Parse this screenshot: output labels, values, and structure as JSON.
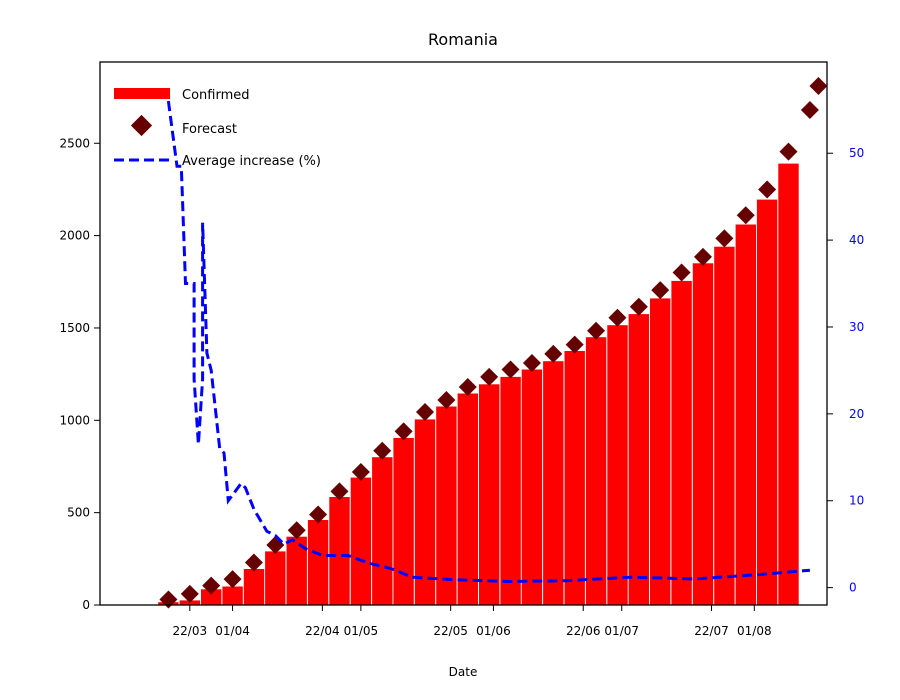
{
  "chart_data": {
    "type": "bar",
    "title": "Romania",
    "xlabel": "Date",
    "ylabel": "",
    "ylabel_right": "",
    "x_tick_labels": [
      "22/03",
      "01/04",
      "22/04",
      "01/05",
      "22/05",
      "01/06",
      "22/06",
      "01/07",
      "22/07",
      "01/08"
    ],
    "y_ticks": [
      "0",
      "500",
      "1000",
      "1500",
      "2000",
      "2500"
    ],
    "y2_ticks": [
      "0",
      "10",
      "20",
      "30",
      "40",
      "50"
    ],
    "ylim": [
      0,
      2940
    ],
    "y2lim": [
      -2,
      60.5
    ],
    "legend": {
      "placement": "upper-left",
      "entries": [
        "Confirmed",
        "Forecast",
        "Average increase (%)"
      ]
    },
    "colors": {
      "confirmed": "#ff0000",
      "forecast": "#660000",
      "average_increase": "#0000ff"
    },
    "grid": false,
    "series": [
      {
        "name": "Confirmed",
        "kind": "bar",
        "x": [
          "2020-03-17",
          "2020-03-22",
          "2020-03-27",
          "2020-04-01",
          "2020-04-06",
          "2020-04-11",
          "2020-04-16",
          "2020-04-21",
          "2020-04-26",
          "2020-05-01",
          "2020-05-06",
          "2020-05-11",
          "2020-05-16",
          "2020-05-21",
          "2020-05-26",
          "2020-05-31",
          "2020-06-05",
          "2020-06-10",
          "2020-06-15",
          "2020-06-20",
          "2020-06-25",
          "2020-06-30",
          "2020-07-05",
          "2020-07-10",
          "2020-07-15",
          "2020-07-20",
          "2020-07-25",
          "2020-07-30",
          "2020-08-04",
          "2020-08-09"
        ],
        "values": [
          15,
          25,
          85,
          100,
          195,
          290,
          370,
          460,
          585,
          690,
          800,
          905,
          1005,
          1075,
          1145,
          1195,
          1235,
          1275,
          1320,
          1375,
          1450,
          1515,
          1575,
          1660,
          1755,
          1850,
          1940,
          2060,
          2195,
          2390
        ]
      },
      {
        "name": "Forecast",
        "kind": "scatter",
        "x": [
          "2020-03-17",
          "2020-03-22",
          "2020-03-27",
          "2020-04-01",
          "2020-04-06",
          "2020-04-11",
          "2020-04-16",
          "2020-04-21",
          "2020-04-26",
          "2020-05-01",
          "2020-05-06",
          "2020-05-11",
          "2020-05-16",
          "2020-05-21",
          "2020-05-26",
          "2020-05-31",
          "2020-06-05",
          "2020-06-10",
          "2020-06-15",
          "2020-06-20",
          "2020-06-25",
          "2020-06-30",
          "2020-07-05",
          "2020-07-10",
          "2020-07-15",
          "2020-07-20",
          "2020-07-25",
          "2020-07-30",
          "2020-08-04",
          "2020-08-09",
          "2020-08-14",
          "2020-08-16"
        ],
        "values": [
          30,
          60,
          105,
          140,
          230,
          325,
          405,
          490,
          615,
          720,
          835,
          940,
          1045,
          1110,
          1180,
          1235,
          1275,
          1310,
          1360,
          1410,
          1485,
          1555,
          1615,
          1705,
          1800,
          1885,
          1985,
          2110,
          2250,
          2455,
          2680,
          2810
        ]
      },
      {
        "name": "Average increase (%)",
        "kind": "line",
        "style": "dashed",
        "x": [
          "2020-03-17",
          "2020-03-19",
          "2020-03-20",
          "2020-03-21",
          "2020-03-23",
          "2020-03-23",
          "2020-03-24",
          "2020-03-25",
          "2020-03-25",
          "2020-03-26",
          "2020-03-27",
          "2020-03-29",
          "2020-03-30",
          "2020-03-31",
          "2020-04-03",
          "2020-04-04",
          "2020-04-06",
          "2020-04-09",
          "2020-04-11",
          "2020-04-13",
          "2020-04-15",
          "2020-04-18",
          "2020-04-22",
          "2020-04-28",
          "2020-05-03",
          "2020-05-08",
          "2020-05-13",
          "2020-05-23",
          "2020-06-05",
          "2020-06-18",
          "2020-07-03",
          "2020-07-18",
          "2020-08-02",
          "2020-08-14"
        ],
        "values": [
          56,
          48.5,
          48.5,
          35,
          35,
          24,
          16.5,
          24,
          42,
          27,
          25,
          16,
          15.5,
          10,
          12,
          11.5,
          9,
          6.5,
          6,
          5,
          5.5,
          4.5,
          3.7,
          3.7,
          2.8,
          2.2,
          1.2,
          0.9,
          0.7,
          0.8,
          1.2,
          1.0,
          1.5,
          2.0
        ]
      }
    ]
  }
}
